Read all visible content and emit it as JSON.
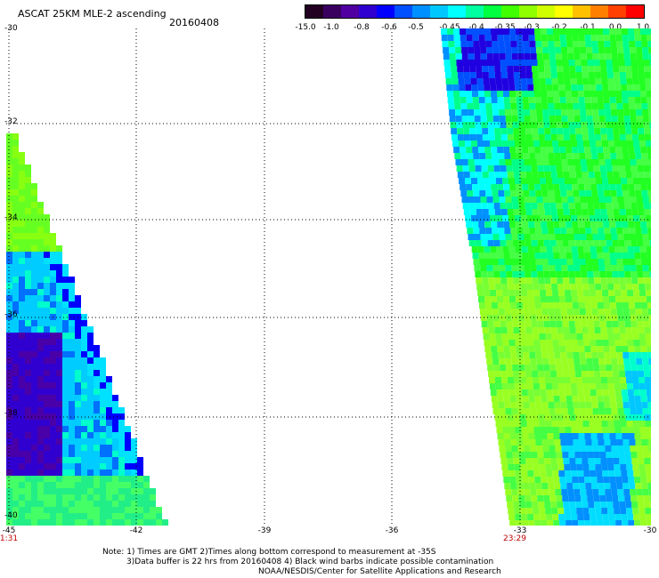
{
  "header": {
    "title": "ASCAT 25KM MLE-2 ascending",
    "date": "20160408"
  },
  "colorbar": {
    "labels": [
      "-15.0",
      "-1.0",
      "-0.8",
      "-0.6",
      "-0.5",
      "-0.45",
      "-0.4",
      "-0.35",
      "-0.3",
      "-0.2",
      "-0.1",
      "0.0",
      "1.0"
    ],
    "colors": [
      "#220022",
      "#3a0060",
      "#5000a0",
      "#3000d0",
      "#0000ff",
      "#0050ff",
      "#0090ff",
      "#00c8ff",
      "#00ffff",
      "#00ffa0",
      "#00ff40",
      "#40ff00",
      "#90ff00",
      "#d0ff00",
      "#ffff00",
      "#ffc000",
      "#ff8000",
      "#ff4000",
      "#ff0000"
    ]
  },
  "map": {
    "lat_labels": [
      "-30",
      "-32",
      "-34",
      "-36",
      "-38",
      "-40"
    ],
    "lon_labels": [
      "-45",
      "-42",
      "-39",
      "-36",
      "-33",
      "-30"
    ],
    "time_labels": {
      "left": "1:31",
      "right": "23:29"
    }
  },
  "notes": {
    "line1": "Note: 1) Times are GMT 2)Times along bottom correspond to measurement at -35S",
    "line2": "3)Data buffer is 22 hrs from 20160408 4) Black wind barbs indicate possible contamination",
    "line3": "NOAA/NESDIS/Center for Satellite Applications and Research"
  }
}
